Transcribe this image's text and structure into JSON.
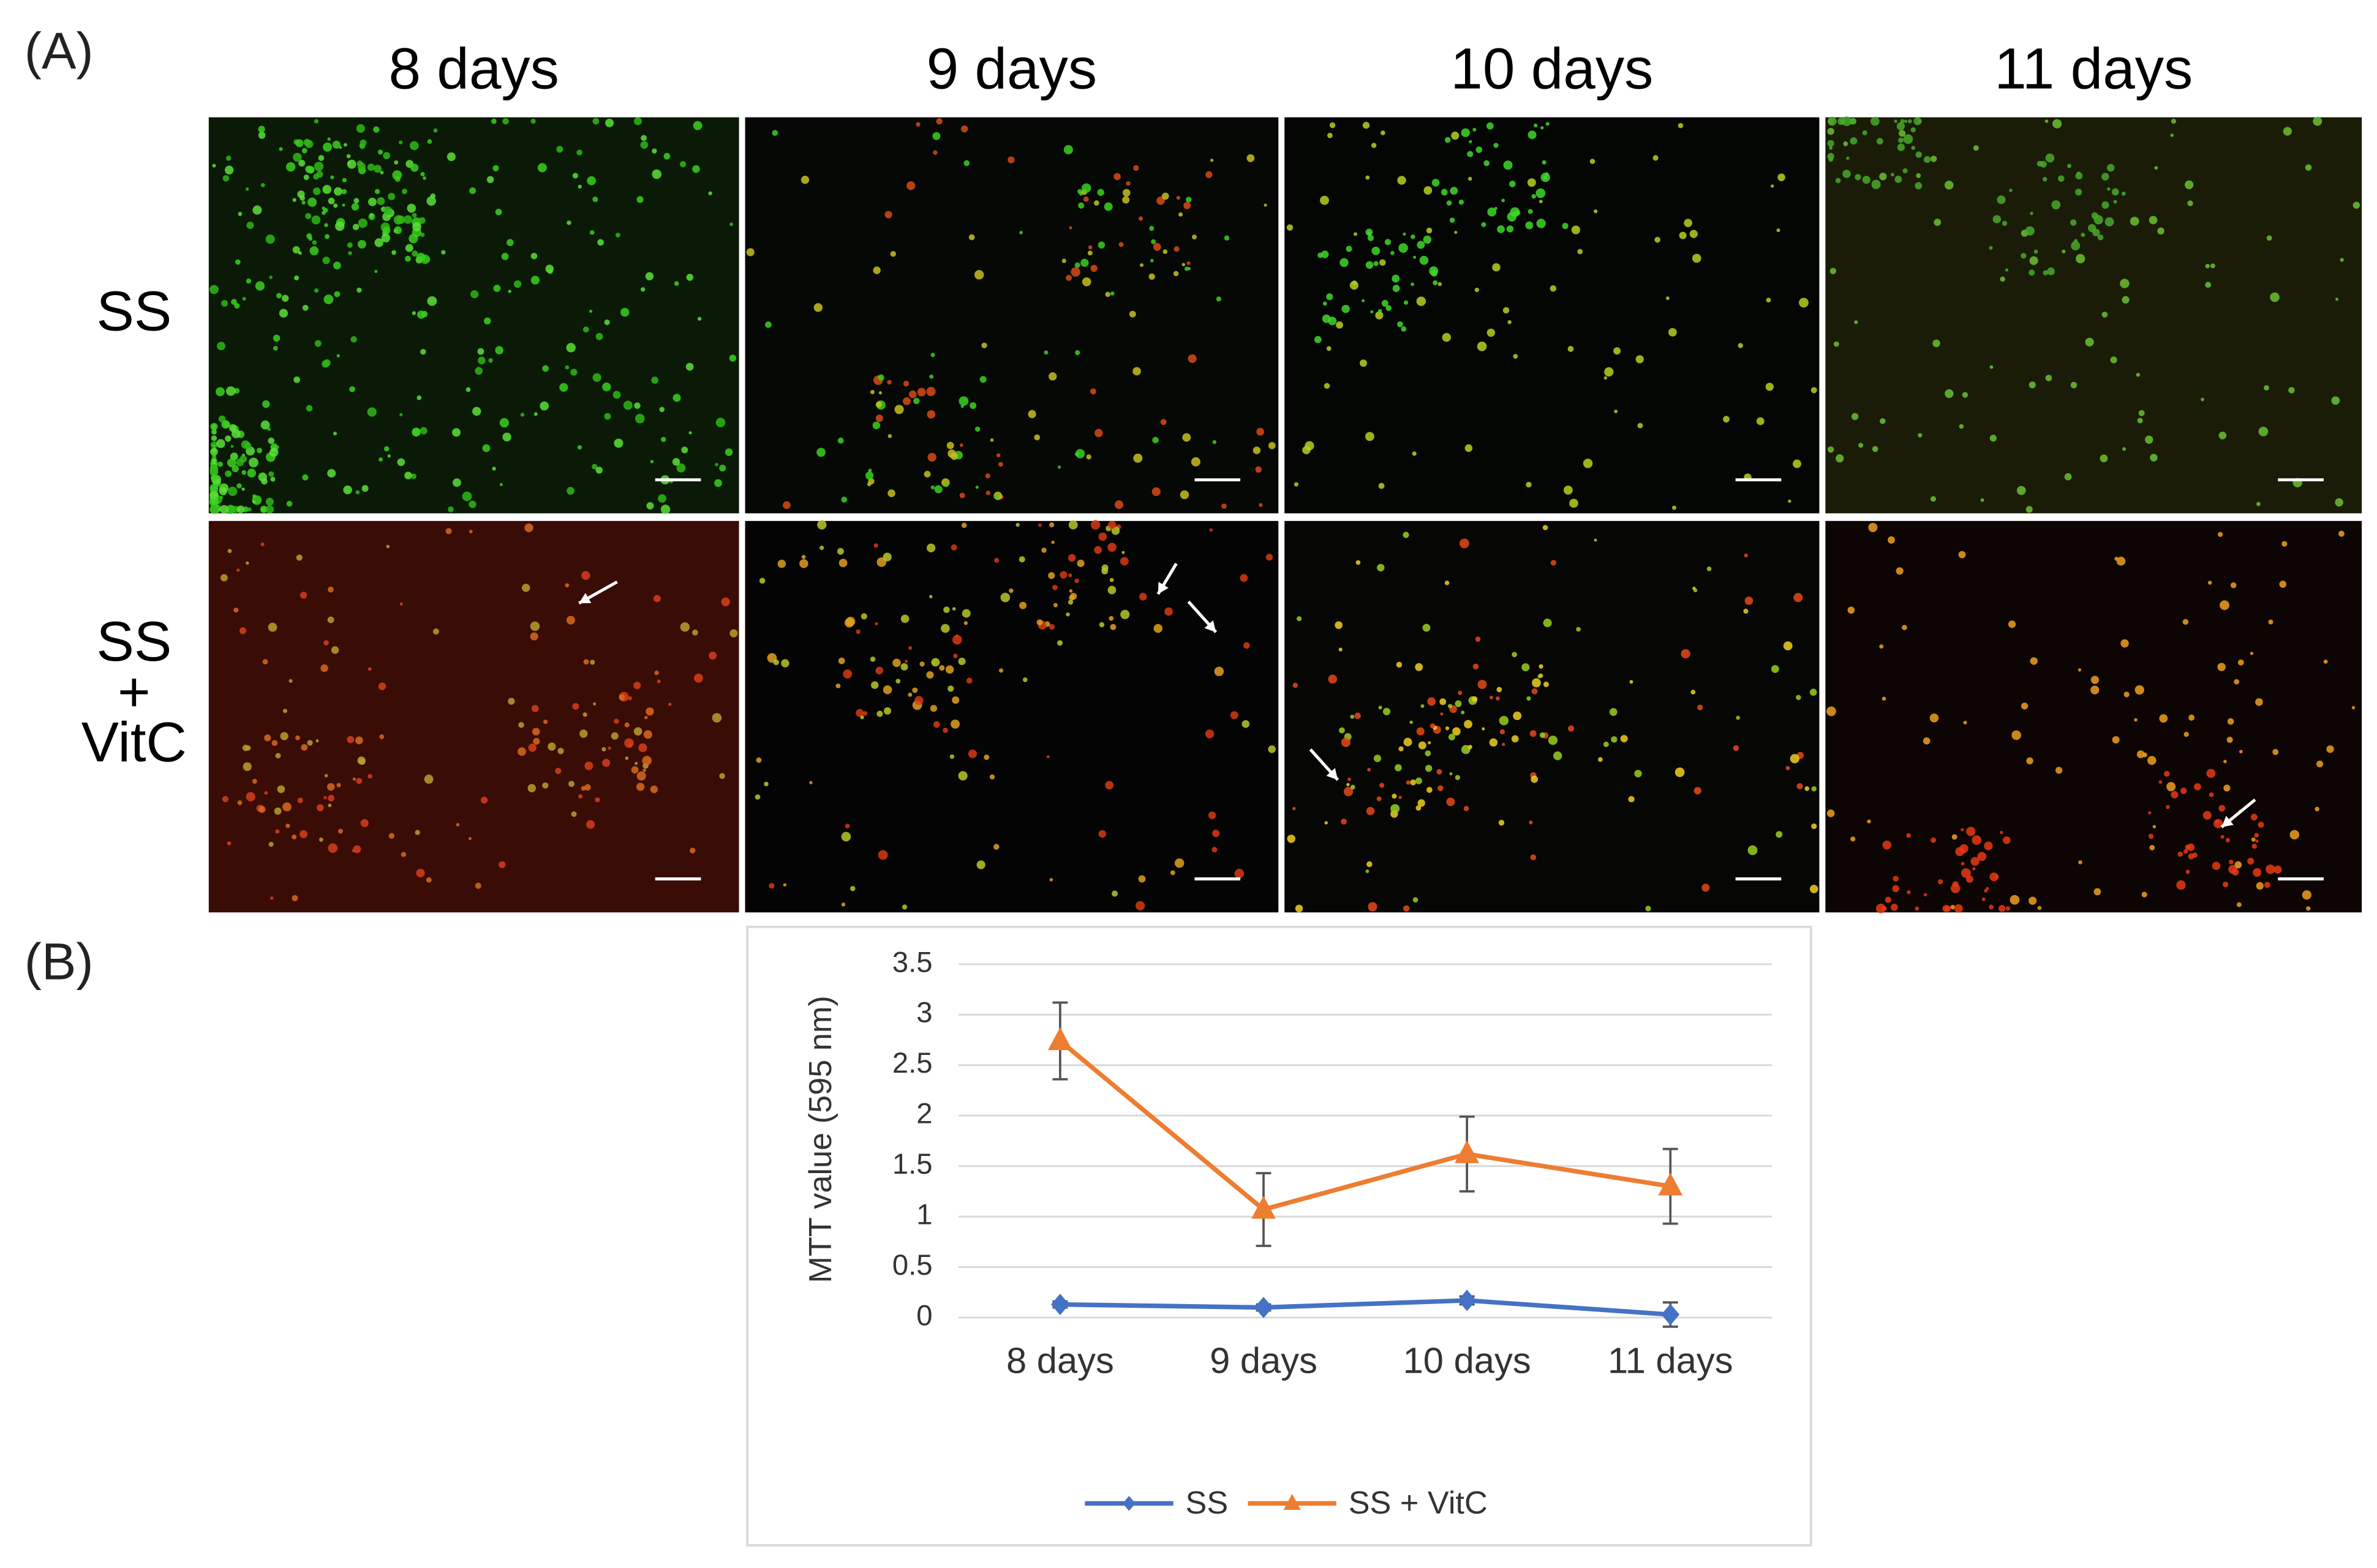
{
  "panel_a": {
    "label": "(A)",
    "columns": [
      "8 days",
      "9 days",
      "10 days",
      "11 days"
    ],
    "rows": [
      [
        "SS"
      ],
      [
        "SS",
        "+",
        "VitC"
      ]
    ]
  },
  "chart_data": {
    "type": "line",
    "label": "(B)",
    "y_label": "MTT value (595 nm)",
    "categories": [
      "8 days",
      "9 days",
      "10 days",
      "11 days"
    ],
    "series": [
      {
        "name": "SS",
        "color": "#4472c4",
        "marker": "diamond",
        "values": [
          0.13,
          0.1,
          0.17,
          0.03
        ],
        "errors": [
          0.03,
          0.03,
          0.04,
          0.12
        ]
      },
      {
        "name": "SS + VitC",
        "color": "#ed7d31",
        "marker": "triangle",
        "values": [
          2.74,
          1.07,
          1.62,
          1.3
        ],
        "errors": [
          0.38,
          0.36,
          0.37,
          0.37
        ]
      }
    ],
    "ylim": [
      0,
      3.5
    ],
    "yticks": [
      0,
      0.5,
      1,
      1.5,
      2,
      2.5,
      3,
      3.5
    ],
    "grid": true,
    "legend": "bottom"
  }
}
